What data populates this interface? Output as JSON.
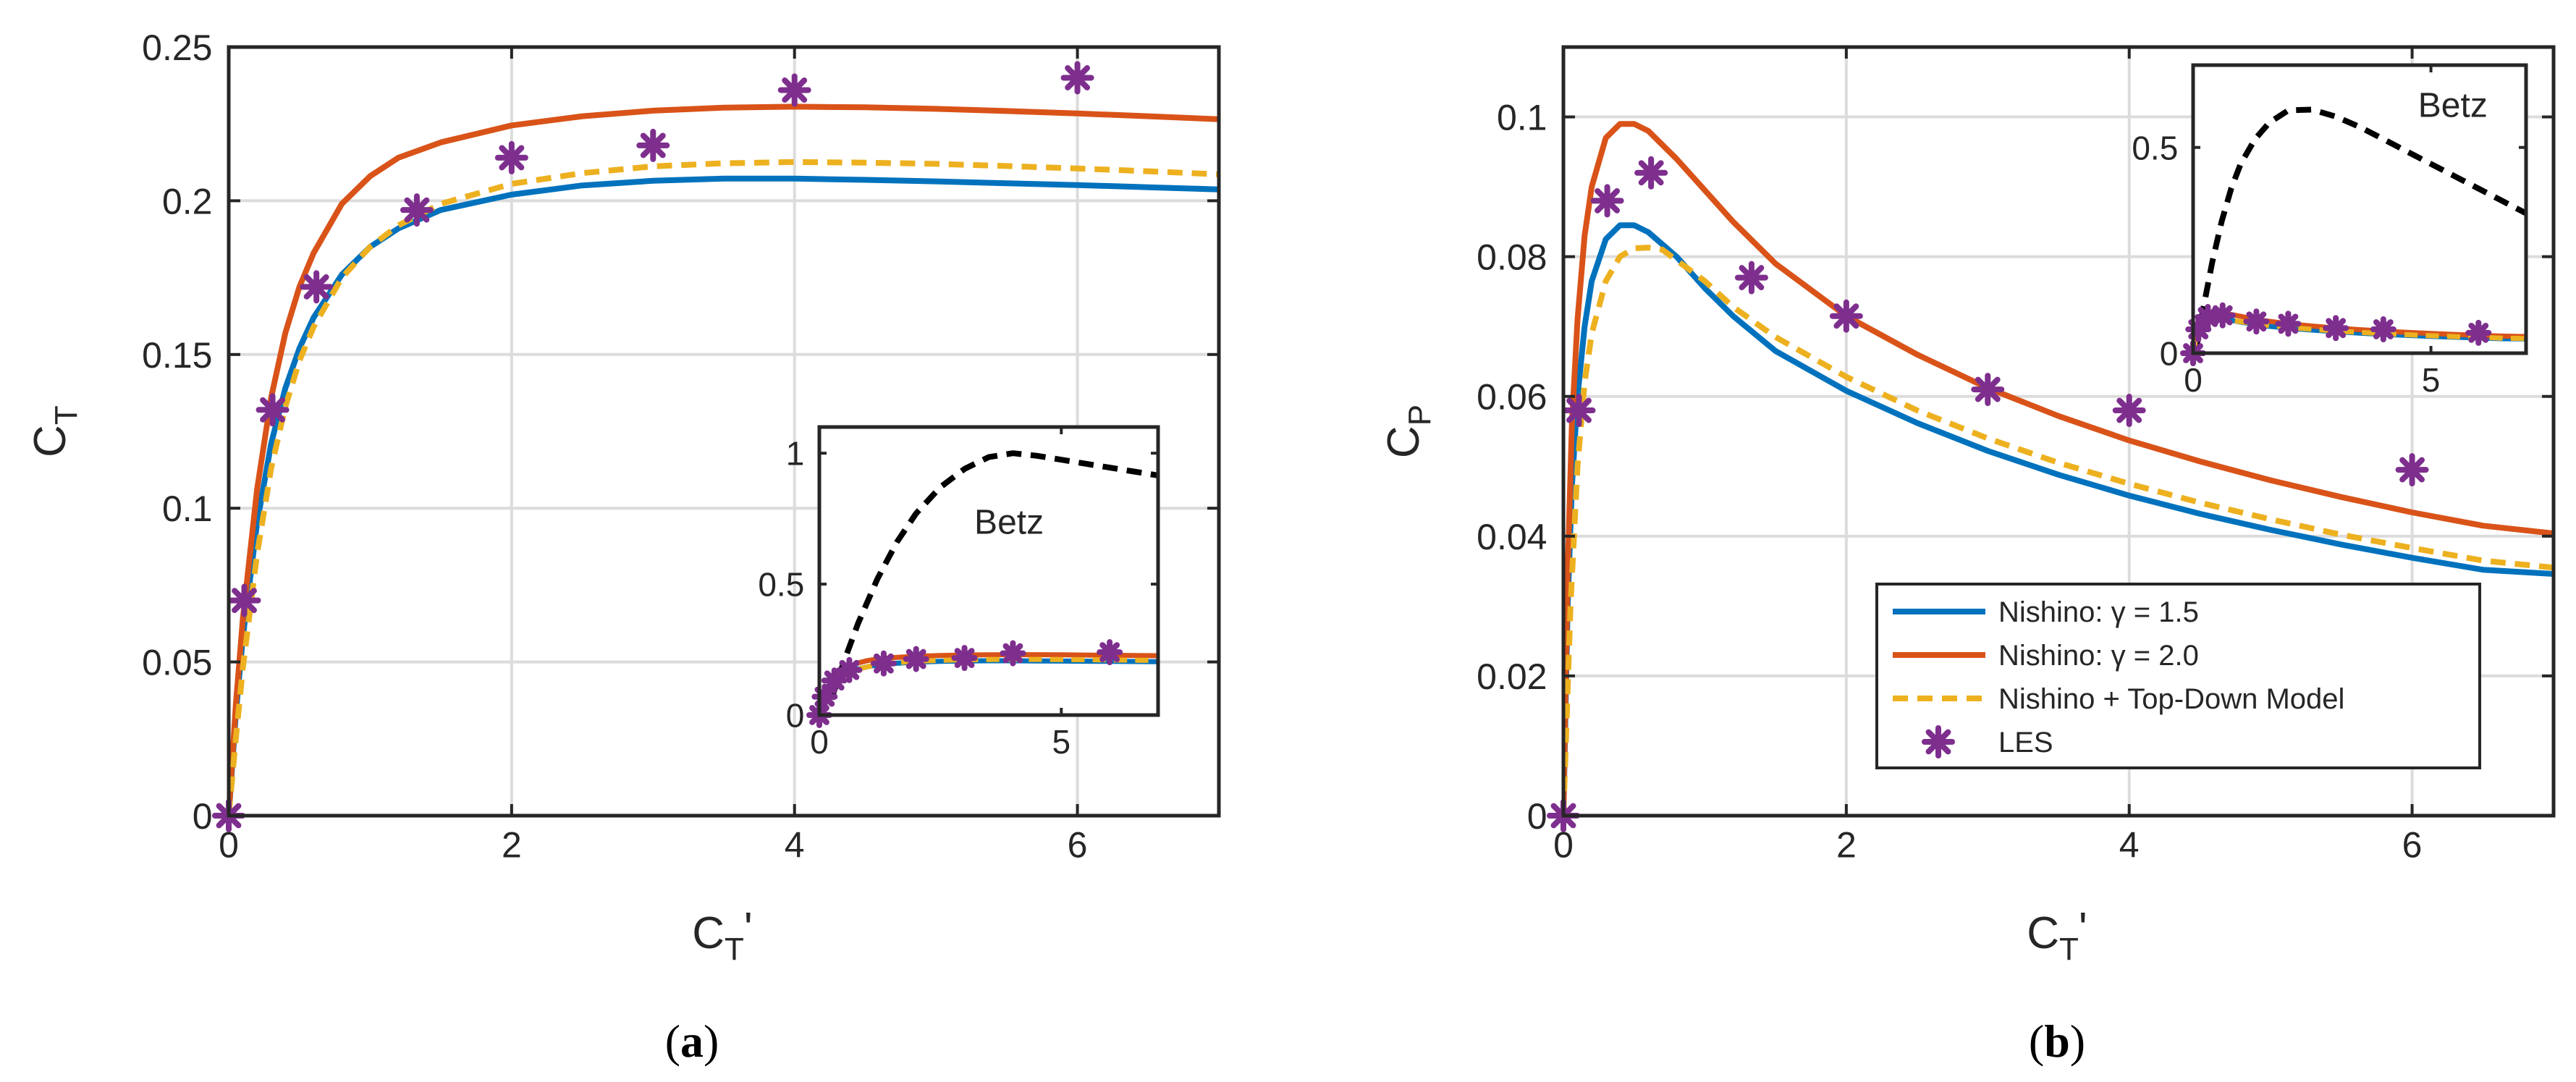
{
  "chart_data": [
    {
      "id": "a",
      "type": "line",
      "caption_open": "(",
      "caption_letter": "a",
      "caption_close": ")",
      "xlabel": "C",
      "xlabel_sub": "T",
      "xlabel_prime": "'",
      "ylabel": "C",
      "ylabel_sub": "T",
      "xlim": [
        0,
        7
      ],
      "ylim": [
        0,
        0.25
      ],
      "xticks": [
        0,
        2,
        4,
        6
      ],
      "xtick_labels": [
        "0",
        "2",
        "4",
        "6"
      ],
      "yticks": [
        0,
        0.05,
        0.1,
        0.15,
        0.2,
        0.25
      ],
      "ytick_labels": [
        "0",
        "0.05",
        "0.1",
        "0.15",
        "0.2",
        "0.25"
      ],
      "grid": true,
      "series": [
        {
          "name": "Nishino: γ = 1.5",
          "color": "#0072BD",
          "style": "solid",
          "x": [
            0,
            0.05,
            0.1,
            0.2,
            0.3,
            0.4,
            0.5,
            0.6,
            0.8,
            1.0,
            1.2,
            1.5,
            2.0,
            2.5,
            3.0,
            3.5,
            4.0,
            4.5,
            5.0,
            5.5,
            6.0,
            6.5,
            7.0
          ],
          "y": [
            0,
            0.033,
            0.058,
            0.095,
            0.121,
            0.139,
            0.152,
            0.162,
            0.176,
            0.185,
            0.191,
            0.197,
            0.202,
            0.205,
            0.2065,
            0.2072,
            0.2072,
            0.2068,
            0.2063,
            0.2057,
            0.2051,
            0.2044,
            0.2037
          ]
        },
        {
          "name": "Nishino: γ = 2.0",
          "color": "#D95319",
          "style": "solid",
          "x": [
            0,
            0.05,
            0.1,
            0.2,
            0.3,
            0.4,
            0.5,
            0.6,
            0.8,
            1.0,
            1.2,
            1.5,
            2.0,
            2.5,
            3.0,
            3.5,
            4.0,
            4.5,
            5.0,
            5.5,
            6.0,
            6.5,
            7.0
          ],
          "y": [
            0,
            0.036,
            0.064,
            0.106,
            0.136,
            0.157,
            0.172,
            0.183,
            0.199,
            0.208,
            0.214,
            0.219,
            0.2245,
            0.2275,
            0.2293,
            0.2303,
            0.2306,
            0.2304,
            0.2299,
            0.2292,
            0.2284,
            0.2275,
            0.2265
          ]
        },
        {
          "name": "Nishino + Top-Down Model",
          "color": "#EDB120",
          "style": "dashed",
          "x": [
            0,
            0.05,
            0.1,
            0.2,
            0.3,
            0.4,
            0.5,
            0.6,
            0.8,
            1.0,
            1.2,
            1.5,
            2.0,
            2.5,
            3.0,
            3.5,
            4.0,
            4.5,
            5.0,
            5.5,
            6.0,
            6.5,
            7.0
          ],
          "y": [
            0,
            0.025,
            0.048,
            0.085,
            0.113,
            0.133,
            0.148,
            0.159,
            0.175,
            0.185,
            0.192,
            0.199,
            0.2055,
            0.209,
            0.2112,
            0.2122,
            0.2126,
            0.2124,
            0.212,
            0.2113,
            0.2105,
            0.2096,
            0.2086
          ]
        },
        {
          "name": "LES",
          "color": "#7E2F8E",
          "style": "marker",
          "x": [
            0,
            0.11,
            0.31,
            0.62,
            1.33,
            2.0,
            3.0,
            4.0,
            6.0
          ],
          "y": [
            0,
            0.07,
            0.132,
            0.172,
            0.197,
            0.214,
            0.218,
            0.236,
            0.24
          ]
        }
      ],
      "inset": {
        "xlim": [
          0,
          7
        ],
        "ylim": [
          0,
          1.1
        ],
        "xticks": [
          0,
          5
        ],
        "xtick_labels": [
          "0",
          "5"
        ],
        "yticks": [
          0,
          0.5,
          1
        ],
        "ytick_labels": [
          "0",
          "0.5",
          "1"
        ],
        "annotation": "Betz",
        "betz": {
          "name": "Betz",
          "color": "#000000",
          "style": "dashed",
          "x": [
            0.25,
            0.5,
            0.8,
            1.2,
            1.6,
            2.0,
            2.5,
            3.0,
            3.5,
            4.0,
            4.5,
            5.0,
            5.5,
            6.0,
            6.5,
            7.0
          ],
          "y": [
            0.06,
            0.2,
            0.35,
            0.52,
            0.66,
            0.77,
            0.87,
            0.94,
            0.985,
            1.0,
            0.99,
            0.975,
            0.96,
            0.945,
            0.93,
            0.915
          ]
        }
      }
    },
    {
      "id": "b",
      "type": "line",
      "caption_open": "(",
      "caption_letter": "b",
      "caption_close": ")",
      "xlabel": "C",
      "xlabel_sub": "T",
      "xlabel_prime": "'",
      "ylabel": "C",
      "ylabel_sub": "P",
      "xlim": [
        0,
        7
      ],
      "ylim": [
        0,
        0.11
      ],
      "xticks": [
        0,
        2,
        4,
        6
      ],
      "xtick_labels": [
        "0",
        "2",
        "4",
        "6"
      ],
      "yticks": [
        0,
        0.02,
        0.04,
        0.06,
        0.08,
        0.1
      ],
      "ytick_labels": [
        "0",
        "0.02",
        "0.04",
        "0.06",
        "0.08",
        "0.1"
      ],
      "grid": true,
      "legend": {
        "location": "lower-right",
        "entries": [
          "Nishino:  γ = 1.5",
          "Nishino:  γ = 2.0",
          "Nishino + Top-Down Model",
          "LES"
        ]
      },
      "series": [
        {
          "name": "Nishino: γ = 1.5",
          "color": "#0072BD",
          "style": "solid",
          "x": [
            0,
            0.03,
            0.06,
            0.1,
            0.15,
            0.2,
            0.3,
            0.4,
            0.5,
            0.6,
            0.8,
            1.0,
            1.2,
            1.5,
            2.0,
            2.5,
            3.0,
            3.5,
            4.0,
            4.5,
            5.0,
            5.5,
            6.0,
            6.5,
            7.0
          ],
          "y": [
            0,
            0.03,
            0.047,
            0.06,
            0.07,
            0.0765,
            0.0825,
            0.0845,
            0.0845,
            0.0835,
            0.08,
            0.0755,
            0.0715,
            0.0665,
            0.0608,
            0.0562,
            0.0522,
            0.0488,
            0.0458,
            0.0432,
            0.0409,
            0.0388,
            0.0369,
            0.0352,
            0.0346
          ]
        },
        {
          "name": "Nishino: γ = 2.0",
          "color": "#D95319",
          "style": "solid",
          "x": [
            0,
            0.03,
            0.06,
            0.1,
            0.15,
            0.2,
            0.3,
            0.4,
            0.5,
            0.6,
            0.8,
            1.0,
            1.2,
            1.5,
            2.0,
            2.5,
            3.0,
            3.5,
            4.0,
            4.5,
            5.0,
            5.5,
            6.0,
            6.5,
            7.0
          ],
          "y": [
            0,
            0.035,
            0.056,
            0.071,
            0.083,
            0.09,
            0.097,
            0.099,
            0.099,
            0.098,
            0.094,
            0.0895,
            0.085,
            0.079,
            0.0715,
            0.066,
            0.0612,
            0.0572,
            0.0537,
            0.0507,
            0.048,
            0.0456,
            0.0434,
            0.0415,
            0.0404
          ]
        },
        {
          "name": "Nishino + Top-Down Model",
          "color": "#EDB120",
          "style": "dashed",
          "x": [
            0,
            0.05,
            0.1,
            0.15,
            0.2,
            0.3,
            0.4,
            0.5,
            0.6,
            0.7,
            0.8,
            1.0,
            1.2,
            1.5,
            2.0,
            2.5,
            3.0,
            3.5,
            4.0,
            4.5,
            5.0,
            5.5,
            6.0,
            6.5,
            7.0
          ],
          "y": [
            0,
            0.03,
            0.05,
            0.062,
            0.069,
            0.0765,
            0.08,
            0.0812,
            0.0813,
            0.081,
            0.0795,
            0.0765,
            0.0728,
            0.0685,
            0.0628,
            0.058,
            0.054,
            0.0505,
            0.0475,
            0.0448,
            0.0424,
            0.0402,
            0.0383,
            0.0365,
            0.0355
          ]
        },
        {
          "name": "LES",
          "color": "#7E2F8E",
          "style": "marker",
          "x": [
            0,
            0.11,
            0.31,
            0.62,
            1.33,
            2.0,
            3.0,
            4.0,
            6.0
          ],
          "y": [
            0,
            0.058,
            0.088,
            0.092,
            0.077,
            0.0715,
            0.061,
            0.058,
            0.0495
          ]
        }
      ],
      "inset": {
        "xlim": [
          0,
          7
        ],
        "ylim": [
          0,
          0.7
        ],
        "xticks": [
          0,
          5
        ],
        "xtick_labels": [
          "0",
          "5"
        ],
        "yticks": [
          0,
          0.5
        ],
        "ytick_labels": [
          "0",
          "0.5"
        ],
        "annotation": "Betz",
        "betz": {
          "name": "Betz",
          "color": "#000000",
          "style": "dashed",
          "x": [
            0.08,
            0.2,
            0.4,
            0.6,
            0.8,
            1.0,
            1.3,
            1.6,
            2.0,
            2.5,
            3.0,
            3.5,
            4.0,
            4.5,
            5.0,
            5.5,
            6.0,
            6.5,
            7.0
          ],
          "y": [
            0.02,
            0.1,
            0.22,
            0.32,
            0.4,
            0.46,
            0.52,
            0.56,
            0.59,
            0.592,
            0.575,
            0.55,
            0.52,
            0.49,
            0.46,
            0.43,
            0.4,
            0.37,
            0.34
          ]
        }
      }
    }
  ]
}
